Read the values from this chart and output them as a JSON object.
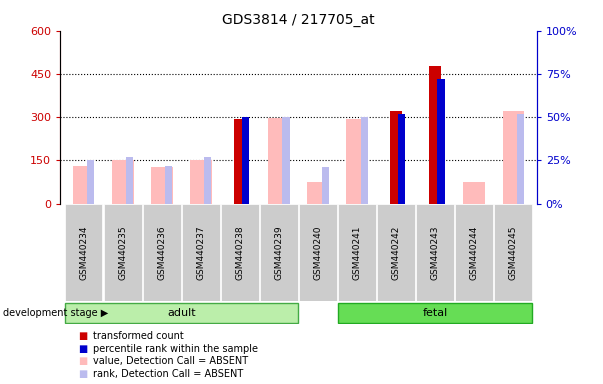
{
  "title": "GDS3814 / 217705_at",
  "samples": [
    "GSM440234",
    "GSM440235",
    "GSM440236",
    "GSM440237",
    "GSM440238",
    "GSM440239",
    "GSM440240",
    "GSM440241",
    "GSM440242",
    "GSM440243",
    "GSM440244",
    "GSM440245"
  ],
  "transformed_count": [
    null,
    null,
    null,
    null,
    292,
    null,
    null,
    null,
    320,
    478,
    null,
    null
  ],
  "percentile_rank_pct": [
    null,
    null,
    null,
    null,
    50,
    null,
    null,
    null,
    52,
    72,
    null,
    null
  ],
  "absent_value": [
    130,
    152,
    128,
    152,
    null,
    297,
    75,
    295,
    null,
    null,
    73,
    322
  ],
  "absent_rank_pct": [
    25,
    27,
    22,
    27,
    null,
    50,
    21,
    50,
    null,
    null,
    null,
    52
  ],
  "left_ylim": [
    0,
    600
  ],
  "right_ylim": [
    0,
    100
  ],
  "left_yticks": [
    0,
    150,
    300,
    450,
    600
  ],
  "right_yticks": [
    0,
    25,
    50,
    75,
    100
  ],
  "left_yticklabels": [
    "0",
    "150",
    "300",
    "450",
    "600"
  ],
  "right_yticklabels": [
    "0%",
    "25%",
    "50%",
    "75%",
    "100%"
  ],
  "left_color": "#cc0000",
  "right_color": "#0000cc",
  "absent_value_color": "#ffbbbb",
  "absent_rank_color": "#bbbbee",
  "bg_color": "#ffffff",
  "legend_items": [
    {
      "label": "transformed count",
      "color": "#cc0000"
    },
    {
      "label": "percentile rank within the sample",
      "color": "#0000cc"
    },
    {
      "label": "value, Detection Call = ABSENT",
      "color": "#ffbbbb"
    },
    {
      "label": "rank, Detection Call = ABSENT",
      "color": "#bbbbee"
    }
  ],
  "adult_label": "adult",
  "fetal_label": "fetal",
  "adult_color": "#bbeeaa",
  "fetal_color": "#66dd55",
  "development_stage_label": "development stage"
}
